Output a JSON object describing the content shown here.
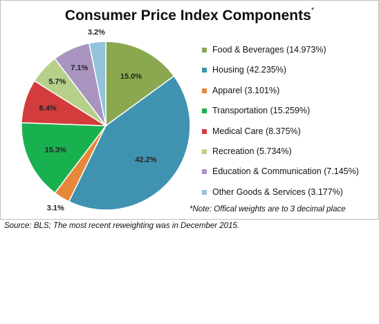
{
  "chart_data": {
    "type": "pie",
    "title": "Consumer Price Index Components",
    "title_mark": "*",
    "categories": [
      "Food & Beverages",
      "Housing",
      "Apparel",
      "Transportation",
      "Medical Care",
      "Recreation",
      "Education & Communication",
      "Other Goods & Services"
    ],
    "values": [
      14.973,
      42.235,
      3.101,
      15.259,
      8.375,
      5.734,
      7.145,
      3.177
    ],
    "data_labels": [
      "15.0%",
      "42.2%",
      "3.1%",
      "15.3%",
      "8.4%",
      "5.7%",
      "7.1%",
      "3.2%"
    ],
    "legend_labels": [
      "Food & Beverages (14.973%)",
      "Housing (42.235%)",
      "Apparel (3.101%)",
      "Transportation (15.259%)",
      "Medical Care (8.375%)",
      "Recreation (5.734%)",
      "Education & Communication (7.145%)",
      "Other Goods & Services (3.177%)"
    ],
    "colors": [
      "#8aa84e",
      "#3f93b0",
      "#e6873a",
      "#19b14f",
      "#d23c3c",
      "#b6d08a",
      "#a894bf",
      "#93c4da"
    ],
    "legend_position": "right",
    "note": "*Note: Offical weights are to 3 decimal place"
  },
  "source": "Source: BLS; The most recent reweighting was in December 2015."
}
